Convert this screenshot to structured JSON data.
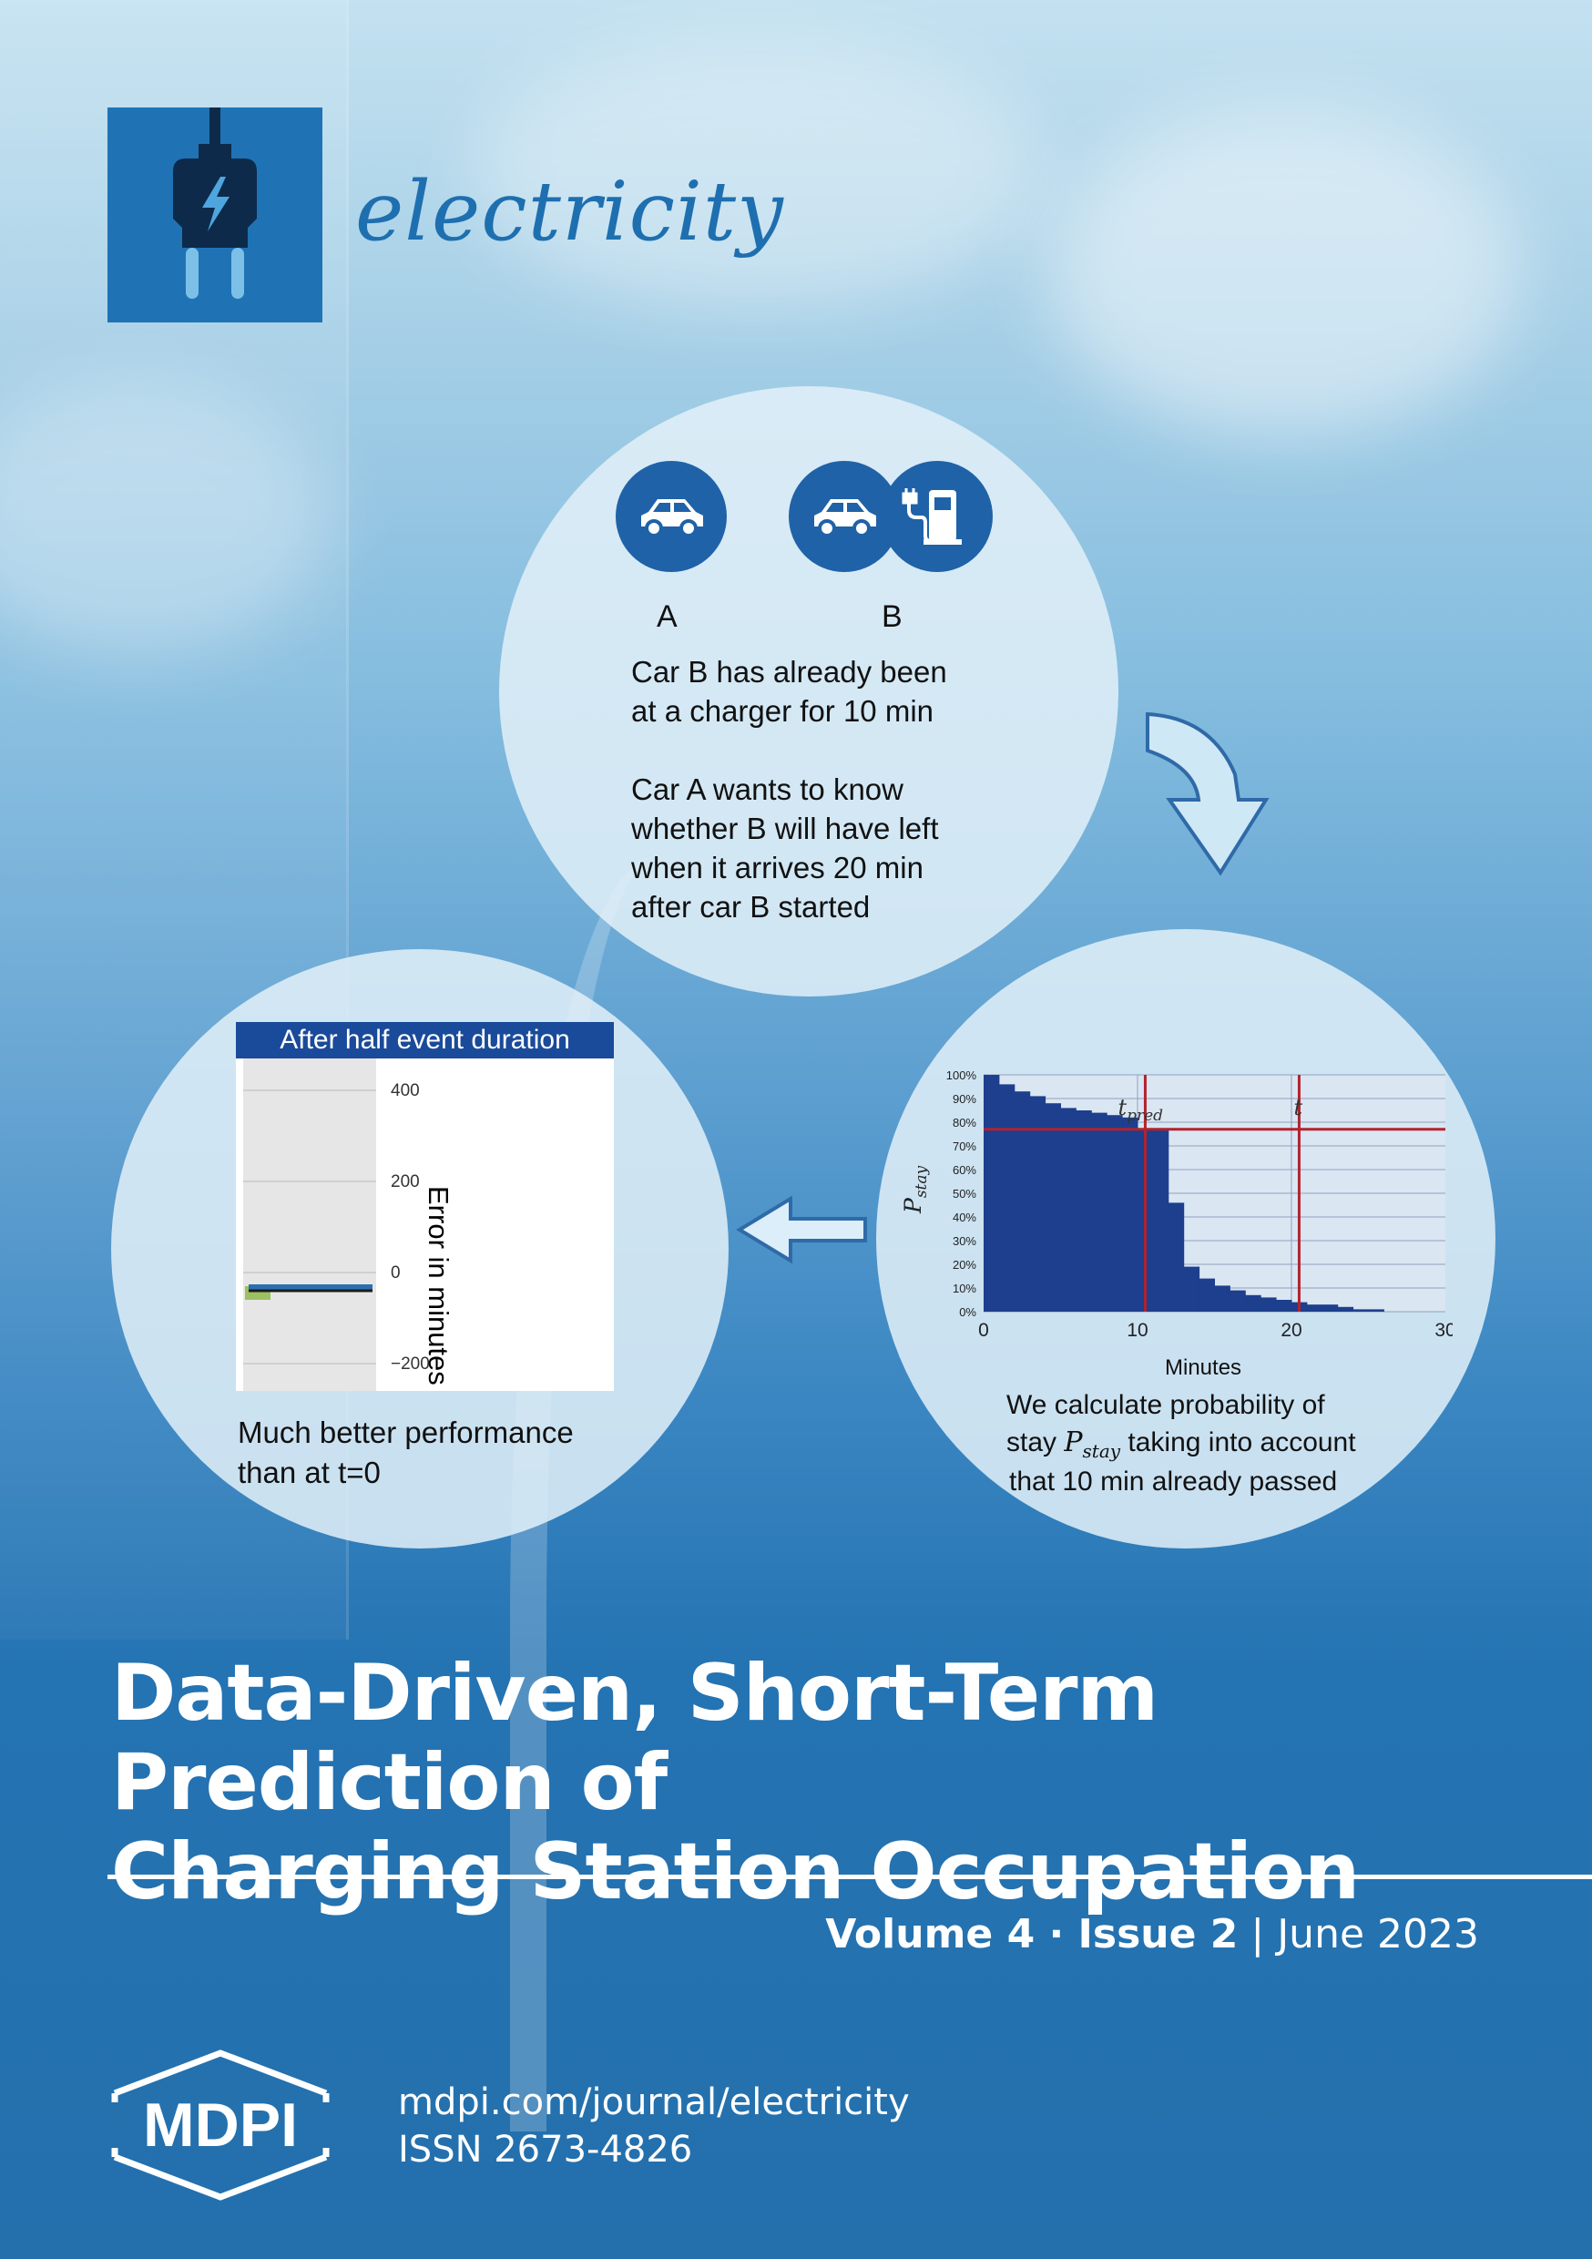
{
  "journal": {
    "name": "electricity",
    "logo_icon": "plug-bolt-icon"
  },
  "infographic": {
    "top": {
      "label_a": "A",
      "label_b": "B",
      "car_a_icon": "car-icon",
      "car_b_icon": "car-icon",
      "charger_icon": "charging-station-icon",
      "text_lines": [
        "Car B has already been",
        "at a charger for 10 min",
        "",
        "Car A wants to know",
        "whether B will have left",
        "when it arrives 20 min",
        "after car B started"
      ]
    },
    "right": {
      "caption_line1": "We calculate probability of",
      "caption_line2_pre": "stay ",
      "caption_line2_sym": "P",
      "caption_line2_sub": "stay",
      "caption_line2_post": " taking into account",
      "caption_line3": "that 10 min already passed"
    },
    "left": {
      "caption_line1": "Much better performance",
      "caption_line2": "than at t=0"
    }
  },
  "chart_data": [
    {
      "type": "bar",
      "title": "",
      "xlabel": "Minutes",
      "ylabel": "P_stay",
      "ylabel_sym": "P",
      "ylabel_sub": "stay",
      "xlim": [
        0,
        30
      ],
      "ylim": [
        0,
        100
      ],
      "x_ticks": [
        "0",
        "10",
        "20",
        "30"
      ],
      "y_ticks": [
        "0%",
        "10%",
        "20%",
        "30%",
        "40%",
        "50%",
        "60%",
        "70%",
        "80%",
        "90%",
        "100%"
      ],
      "bin_width_minutes": 1,
      "x": [
        0,
        1,
        2,
        3,
        4,
        5,
        6,
        7,
        8,
        9,
        10,
        11,
        12,
        13,
        14,
        15,
        16,
        17,
        18,
        19,
        20,
        21,
        22,
        23,
        24,
        25,
        26,
        27,
        28,
        29
      ],
      "values": [
        100,
        96,
        93,
        91,
        88,
        86,
        85,
        84,
        83,
        82,
        77,
        77,
        46,
        19,
        14,
        11,
        9,
        7,
        6,
        5,
        4,
        3,
        3,
        2,
        1,
        1,
        0,
        0,
        0,
        0
      ],
      "reference_lines": {
        "horizontal_y": 77,
        "vertical_x": [
          10.5,
          20.5
        ],
        "t_pred_label": "t",
        "t_pred_sub": "pred",
        "t_label": "t"
      },
      "colors": {
        "bars": "#1d3f8e",
        "lines": "#b3232d",
        "background": "#dbe6f3",
        "grid": "#8fa3bd"
      }
    },
    {
      "type": "bar",
      "title": "After half event duration",
      "xlabel": "",
      "ylabel": "Error in minutes",
      "ylim": [
        -250,
        450
      ],
      "y_ticks": [
        "400",
        "200",
        "0",
        "−200"
      ],
      "y_tick_values": [
        400,
        200,
        0,
        -200
      ],
      "series_values": [
        {
          "min": -60,
          "max": -30
        }
      ],
      "median": -40,
      "colors": {
        "header": "#1a4a9a",
        "box": "#8cb84a",
        "median": "#1b1b1b",
        "bar": "#2c6fb0"
      }
    }
  ],
  "article": {
    "title_line1": "Data-Driven, Short-Term Prediction of",
    "title_line2": "Charging Station Occupation"
  },
  "issue": {
    "volume": "Volume 4",
    "separator": " · ",
    "issue": "Issue 2",
    "divider": " | ",
    "date": "June 2023"
  },
  "publisher": {
    "logo_text": "MDPI",
    "url": "mdpi.com/journal/electricity",
    "issn": "ISSN 2673-4826"
  }
}
